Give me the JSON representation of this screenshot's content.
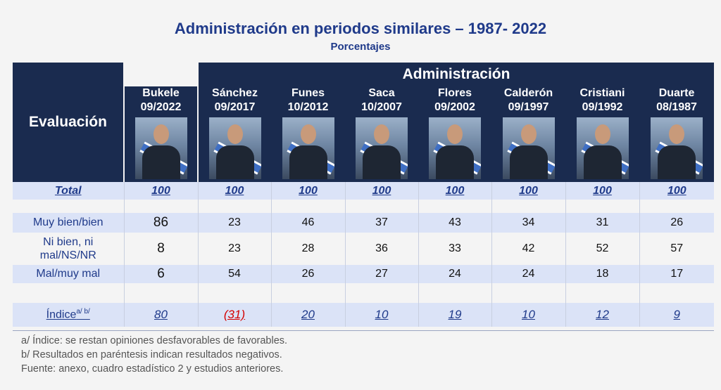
{
  "title": "Administración en periodos similares – 1987- 2022",
  "subtitle": "Porcentajes",
  "group_header": "Administración",
  "row_header": "Evaluación",
  "administrations": [
    {
      "name": "Bukele",
      "date": "09/2022"
    },
    {
      "name": "Sánchez",
      "date": "09/2017"
    },
    {
      "name": "Funes",
      "date": "10/2012"
    },
    {
      "name": "Saca",
      "date": "10/2007"
    },
    {
      "name": "Flores",
      "date": "09/2002"
    },
    {
      "name": "Calderón",
      "date": "09/1997"
    },
    {
      "name": "Cristiani",
      "date": "09/1992"
    },
    {
      "name": "Duarte",
      "date": "08/1987"
    }
  ],
  "rows": {
    "total": {
      "label": "Total",
      "values": [
        "100",
        "100",
        "100",
        "100",
        "100",
        "100",
        "100",
        "100"
      ]
    },
    "muy_bien": {
      "label": "Muy bien/bien",
      "values": [
        "86",
        "23",
        "46",
        "37",
        "43",
        "34",
        "31",
        "26"
      ]
    },
    "ni_bien": {
      "label_line1": "Ni bien, ni",
      "label_line2": "mal/NS/NR",
      "values": [
        "8",
        "23",
        "28",
        "36",
        "33",
        "42",
        "52",
        "57"
      ]
    },
    "mal": {
      "label": "Mal/muy mal",
      "values": [
        "6",
        "54",
        "26",
        "27",
        "24",
        "24",
        "18",
        "17"
      ]
    },
    "indice": {
      "label": "Índice",
      "label_sup": "a/ b/",
      "values": [
        "80",
        "(31)",
        "20",
        "10",
        "19",
        "10",
        "12",
        "9"
      ]
    }
  },
  "notes": [
    "a/ Índice: se restan opiniones desfavorables de favorables.",
    "b/ Resultados en paréntesis indican resultados negativos.",
    "Fuente: anexo, cuadro estadístico 2 y estudios anteriores."
  ],
  "colors": {
    "header_bg": "#1a2b4f",
    "title": "#1f3a8a",
    "band": "#dbe3f7",
    "negative": "#d40000"
  }
}
